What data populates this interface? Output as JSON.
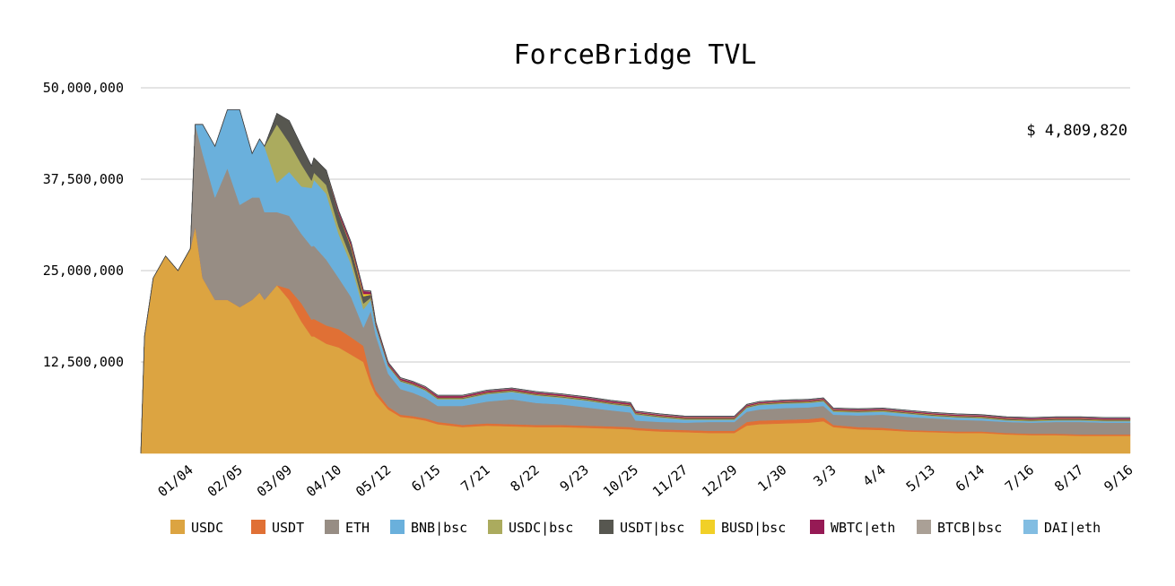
{
  "chart_data": {
    "type": "area",
    "stacked": true,
    "title": "ForceBridge TVL",
    "total_label": "$ 4,809,820",
    "xlabel": "",
    "ylabel": "",
    "ylim": [
      0,
      50000000
    ],
    "yticks": [
      "12,500,000",
      "25,000,000",
      "37,500,000",
      "50,000,000"
    ],
    "ytick_values": [
      12500000,
      25000000,
      37500000,
      50000000
    ],
    "grid": true,
    "legend_position": "bottom",
    "x_tick_labels": [
      "01/04",
      "02/05",
      "03/09",
      "04/10",
      "05/12",
      "6/15",
      "7/21",
      "8/22",
      "9/23",
      "10/25",
      "11/27",
      "12/29",
      "1/30",
      "3/3",
      "4/4",
      "5/13",
      "6/14",
      "7/16",
      "8/17",
      "9/16"
    ],
    "x_tick_positions": [
      2,
      4,
      6,
      8,
      10,
      12,
      14,
      16,
      18,
      20,
      22,
      24,
      26,
      28,
      30,
      32,
      34,
      36,
      38,
      40
    ],
    "x": [
      0,
      0.15,
      0.5,
      1,
      1.5,
      2,
      2.2,
      2.5,
      3,
      3.5,
      4,
      4.5,
      4.8,
      5,
      5.5,
      6,
      6.5,
      6.9,
      7,
      7.5,
      8,
      8.5,
      9,
      9.3,
      9.5,
      10,
      10.5,
      11,
      11.5,
      12,
      12.5,
      13,
      14,
      15,
      16,
      17,
      18,
      19,
      19.8,
      20,
      21,
      22,
      23,
      24,
      24.5,
      25,
      26,
      27,
      27.6,
      28,
      29,
      30,
      31,
      32,
      33,
      34,
      35,
      36,
      37,
      38,
      39,
      40
    ],
    "series": [
      {
        "name": "USDC",
        "color": "#dca441",
        "values": [
          0,
          16,
          24,
          27,
          25,
          28,
          31,
          24,
          21,
          21,
          20,
          21,
          22,
          21,
          23,
          21,
          18,
          16,
          16,
          15,
          14.5,
          13.5,
          12.5,
          9.5,
          8,
          6,
          5,
          4.8,
          4.5,
          4,
          3.8,
          3.6,
          3.8,
          3.7,
          3.6,
          3.6,
          3.5,
          3.4,
          3.3,
          3.2,
          3,
          2.9,
          2.8,
          2.8,
          3.8,
          4,
          4.1,
          4.2,
          4.4,
          3.6,
          3.3,
          3.2,
          3.0,
          2.9,
          2.8,
          2.8,
          2.6,
          2.5,
          2.5,
          2.4,
          2.4,
          2.4
        ]
      },
      {
        "name": "USDT",
        "color": "#e07035",
        "values": [
          0,
          0,
          0,
          0,
          0,
          0,
          0,
          0,
          0,
          0,
          0,
          0,
          0,
          0,
          0,
          1.5,
          2.5,
          2.3,
          2.4,
          2.5,
          2.5,
          2.4,
          2.2,
          1,
          0.6,
          0.4,
          0.3,
          0.3,
          0.3,
          0.3,
          0.3,
          0.3,
          0.3,
          0.3,
          0.3,
          0.3,
          0.3,
          0.3,
          0.3,
          0.3,
          0.3,
          0.3,
          0.3,
          0.3,
          0.5,
          0.5,
          0.5,
          0.5,
          0.5,
          0.3,
          0.3,
          0.3,
          0.2,
          0.2,
          0.2,
          0.2,
          0.2,
          0.2,
          0.2,
          0.2,
          0.2,
          0.2
        ]
      },
      {
        "name": "ETH",
        "color": "#978d84",
        "values": [
          0,
          0,
          0,
          0,
          0,
          0,
          14,
          17,
          14,
          18,
          14,
          14,
          13,
          12,
          10,
          10,
          9.5,
          10,
          10,
          9,
          7,
          5.5,
          2.5,
          9,
          7.5,
          4.5,
          3.5,
          3.2,
          2.8,
          2.2,
          2.4,
          2.6,
          3.0,
          3.4,
          3.0,
          2.8,
          2.5,
          2.2,
          2.0,
          1.0,
          1.0,
          1.0,
          1.2,
          1.2,
          1.4,
          1.5,
          1.6,
          1.6,
          1.6,
          1.4,
          1.6,
          1.8,
          1.8,
          1.7,
          1.6,
          1.5,
          1.5,
          1.5,
          1.6,
          1.7,
          1.6,
          1.6
        ]
      },
      {
        "name": "BNB|bsc",
        "color": "#6ab0dc",
        "values": [
          0,
          0,
          0,
          0,
          0,
          0,
          0,
          4,
          7,
          8,
          13,
          6,
          8,
          9,
          4,
          6,
          6.5,
          8,
          9,
          9,
          6,
          4.5,
          2.5,
          1.5,
          1.2,
          1.0,
          1.0,
          1.0,
          1.0,
          0.9,
          0.9,
          0.9,
          1.0,
          1.0,
          1.0,
          0.9,
          0.9,
          0.8,
          0.8,
          0.8,
          0.6,
          0.4,
          0.3,
          0.3,
          0.5,
          0.6,
          0.6,
          0.6,
          0.6,
          0.4,
          0.4,
          0.4,
          0.4,
          0.3,
          0.3,
          0.3,
          0.2,
          0.2,
          0.2,
          0.2,
          0.2,
          0.2
        ]
      },
      {
        "name": "USDC|bsc",
        "color": "#abab5e",
        "values": [
          0,
          0,
          0,
          0,
          0,
          0,
          0,
          0,
          0,
          0,
          0,
          0,
          0,
          0,
          8,
          4,
          3,
          1.0,
          1.0,
          1.2,
          1.0,
          0.8,
          0.8,
          0.3,
          0.1,
          0.1,
          0.1,
          0.1,
          0.1,
          0.1,
          0.1,
          0.1,
          0.1,
          0.1,
          0.1,
          0.1,
          0.1,
          0.1,
          0.1,
          0.1,
          0.1,
          0.1,
          0.1,
          0.1,
          0.1,
          0.1,
          0.1,
          0.1,
          0.1,
          0.1,
          0.1,
          0.1,
          0.1,
          0.1,
          0.1,
          0.1,
          0.1,
          0.1,
          0.1,
          0.1,
          0.1,
          0.1
        ]
      },
      {
        "name": "USDT|bsc",
        "color": "#575750",
        "values": [
          0,
          0,
          0,
          0,
          0,
          0,
          0,
          0,
          0,
          0,
          0,
          0,
          0,
          0,
          1.5,
          3,
          2.5,
          2.0,
          2.0,
          2.0,
          1.8,
          1.5,
          1.0,
          0.4,
          0.2,
          0.1,
          0.1,
          0.1,
          0.1,
          0.1,
          0.1,
          0.1,
          0.1,
          0.1,
          0.1,
          0.1,
          0.1,
          0.1,
          0.1,
          0.1,
          0.1,
          0.1,
          0.1,
          0.1,
          0.1,
          0.1,
          0.1,
          0.1,
          0.1,
          0.1,
          0.1,
          0.1,
          0.1,
          0.1,
          0.1,
          0.1,
          0.1,
          0.1,
          0.1,
          0.1,
          0.1,
          0.1
        ]
      },
      {
        "name": "BUSD|bsc",
        "color": "#f1d027",
        "values": [
          0,
          0,
          0,
          0,
          0,
          0,
          0,
          0,
          0,
          0,
          0,
          0,
          0,
          0,
          0,
          0,
          0,
          0,
          0,
          0,
          0,
          0.2,
          0.3,
          0.1,
          0.05,
          0.05,
          0.05,
          0.05,
          0.05,
          0.05,
          0.05,
          0.05,
          0.05,
          0.05,
          0.05,
          0.05,
          0.05,
          0.05,
          0.05,
          0.05,
          0.05,
          0.05,
          0.05,
          0.05,
          0.05,
          0.05,
          0.05,
          0.05,
          0.05,
          0.05,
          0.05,
          0.05,
          0.05,
          0.05,
          0.05,
          0.05,
          0.05,
          0.05,
          0.05,
          0.05,
          0.05,
          0.05
        ]
      },
      {
        "name": "WBTC|eth",
        "color": "#961a55",
        "values": [
          0,
          0,
          0,
          0,
          0,
          0,
          0,
          0,
          0,
          0,
          0,
          0,
          0,
          0,
          0,
          0,
          0,
          0,
          0,
          0,
          0.3,
          0.4,
          0.4,
          0.3,
          0.2,
          0.2,
          0.2,
          0.2,
          0.2,
          0.2,
          0.2,
          0.2,
          0.2,
          0.2,
          0.2,
          0.2,
          0.2,
          0.2,
          0.2,
          0.15,
          0.15,
          0.15,
          0.15,
          0.15,
          0.15,
          0.15,
          0.15,
          0.15,
          0.15,
          0.15,
          0.15,
          0.15,
          0.15,
          0.15,
          0.15,
          0.15,
          0.15,
          0.15,
          0.15,
          0.15,
          0.15,
          0.15
        ]
      },
      {
        "name": "BTCB|bsc",
        "color": "#aaa096",
        "values": [
          0,
          0,
          0,
          0,
          0,
          0,
          0,
          0,
          0,
          0,
          0,
          0,
          0,
          0,
          0,
          0,
          0,
          0,
          0,
          0,
          0.1,
          0.1,
          0.1,
          0.1,
          0.1,
          0.1,
          0.1,
          0.1,
          0.1,
          0.1,
          0.1,
          0.1,
          0.1,
          0.1,
          0.1,
          0.1,
          0.1,
          0.1,
          0.1,
          0.1,
          0.1,
          0.1,
          0.1,
          0.1,
          0.1,
          0.1,
          0.1,
          0.1,
          0.1,
          0.1,
          0.1,
          0.1,
          0.1,
          0.1,
          0.1,
          0.1,
          0.1,
          0.1,
          0.1,
          0.1,
          0.1,
          0.1
        ]
      },
      {
        "name": "DAI|eth",
        "color": "#82bde2",
        "values": [
          0,
          0,
          0,
          0,
          0,
          0,
          0,
          0,
          0,
          0,
          0,
          0,
          0,
          0,
          0,
          0,
          0,
          0,
          0,
          0,
          0,
          0,
          0,
          0,
          0,
          0,
          0,
          0,
          0,
          0,
          0,
          0,
          0,
          0,
          0,
          0,
          0,
          0,
          0,
          0,
          0,
          0,
          0,
          0,
          0,
          0,
          0,
          0,
          0,
          0,
          0,
          0,
          0,
          0,
          0,
          0,
          0,
          0,
          0,
          0,
          0,
          0
        ]
      }
    ],
    "values_unit_scale": 1000000
  }
}
